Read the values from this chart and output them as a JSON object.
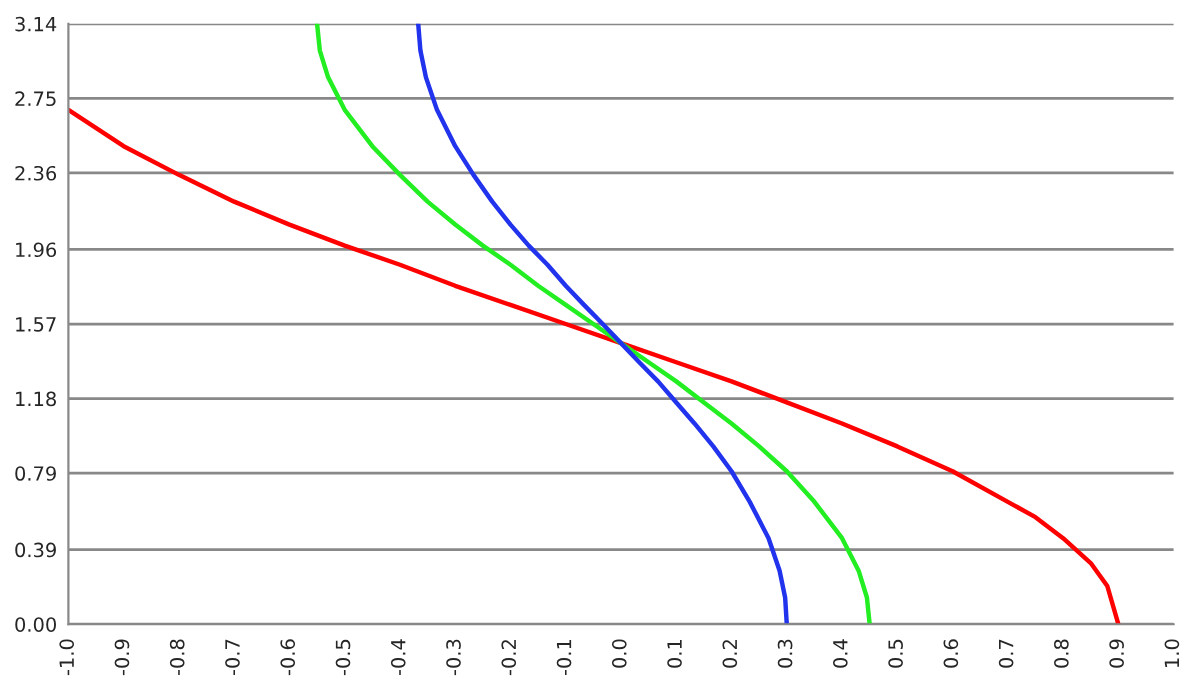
{
  "chart_data": {
    "type": "line",
    "series": [
      {
        "color": "#ff0000",
        "x": [
          -1.0,
          -0.9,
          -0.8,
          -0.7,
          -0.6,
          -0.5,
          -0.4,
          -0.3,
          -0.2,
          -0.1,
          0.0,
          0.1,
          0.2,
          0.3,
          0.4,
          0.5,
          0.6,
          0.7,
          0.75,
          0.8,
          0.85,
          0.88,
          0.9
        ],
        "values": [
          2.69,
          2.5,
          2.35,
          2.21,
          2.09,
          1.98,
          1.88,
          1.77,
          1.67,
          1.57,
          1.47,
          1.37,
          1.27,
          1.16,
          1.05,
          0.93,
          0.8,
          0.64,
          0.56,
          0.45,
          0.32,
          0.2,
          0.0
        ]
      },
      {
        "color": "#22ee22",
        "x": [
          -0.55,
          -0.545,
          -0.53,
          -0.5,
          -0.45,
          -0.4,
          -0.35,
          -0.3,
          -0.25,
          -0.2,
          -0.15,
          -0.1,
          -0.05,
          0.0,
          0.05,
          0.1,
          0.15,
          0.2,
          0.25,
          0.3,
          0.35,
          0.4,
          0.43,
          0.445,
          0.45
        ],
        "values": [
          3.14,
          3.0,
          2.86,
          2.69,
          2.5,
          2.35,
          2.21,
          2.09,
          1.98,
          1.88,
          1.77,
          1.67,
          1.57,
          1.47,
          1.37,
          1.27,
          1.16,
          1.05,
          0.93,
          0.8,
          0.64,
          0.45,
          0.28,
          0.14,
          0.0
        ]
      },
      {
        "color": "#2233ee",
        "x": [
          -0.367,
          -0.363,
          -0.353,
          -0.333,
          -0.3,
          -0.267,
          -0.233,
          -0.2,
          -0.167,
          -0.133,
          -0.1,
          -0.067,
          -0.033,
          0.0,
          0.033,
          0.067,
          0.1,
          0.133,
          0.167,
          0.2,
          0.233,
          0.267,
          0.287,
          0.297,
          0.3
        ],
        "values": [
          3.14,
          3.0,
          2.86,
          2.69,
          2.5,
          2.35,
          2.21,
          2.09,
          1.98,
          1.88,
          1.77,
          1.67,
          1.57,
          1.47,
          1.37,
          1.27,
          1.16,
          1.05,
          0.93,
          0.8,
          0.64,
          0.45,
          0.28,
          0.14,
          0.0
        ]
      }
    ],
    "xlim": [
      -1.0,
      1.0
    ],
    "xticks": [
      {
        "value": -1.0,
        "label": "-1.0"
      },
      -0.9,
      -0.8,
      -0.7,
      -0.6,
      -0.5,
      -0.4,
      -0.3,
      -0.2,
      -0.1,
      {
        "value": 0,
        "label": "0.0"
      },
      0.1,
      0.2,
      0.3,
      0.4,
      0.5,
      0.6,
      0.7,
      0.8,
      0.9,
      {
        "value": 1.0,
        "label": "1.0"
      }
    ],
    "ylim": [
      0,
      3.14
    ],
    "yticks": [
      {
        "value": 0,
        "label": "0.00"
      },
      0.39,
      0.79,
      1.18,
      1.57,
      1.96,
      2.36,
      2.75,
      3.14
    ],
    "grid": "y",
    "marker": "none",
    "line_style": "solid"
  }
}
